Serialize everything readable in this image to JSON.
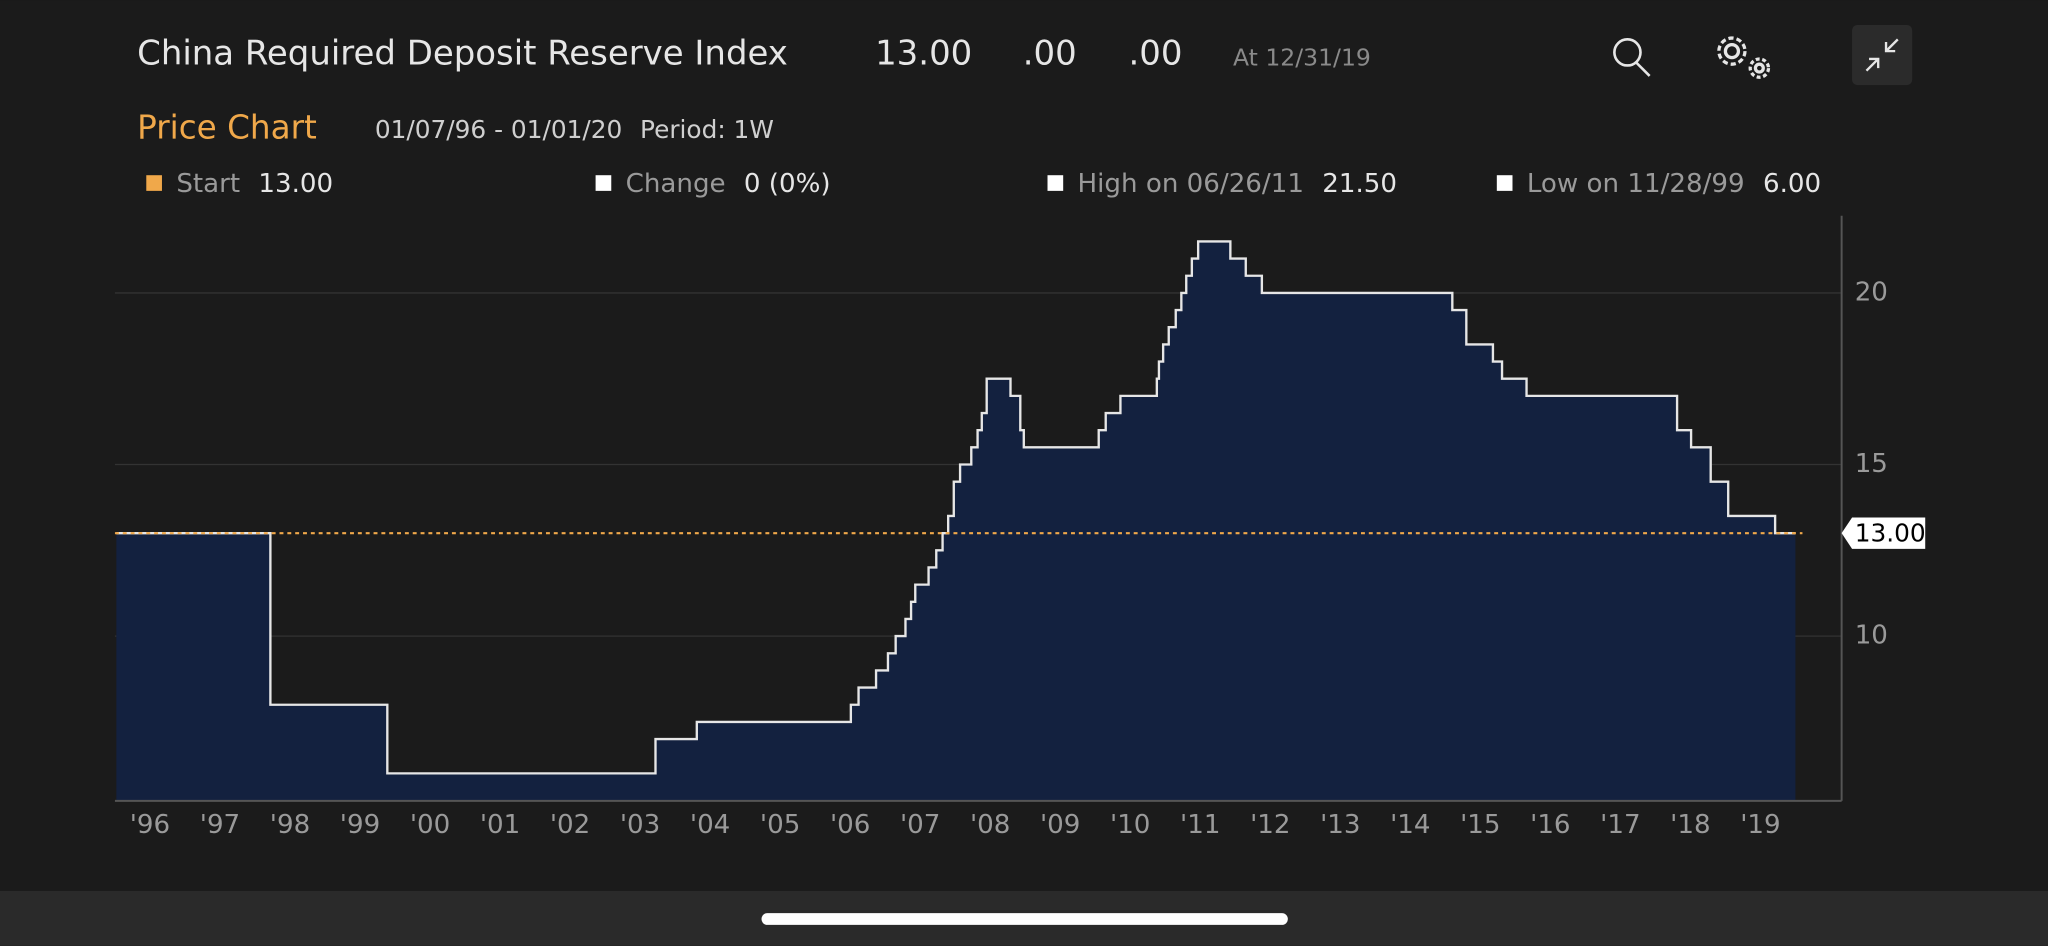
{
  "header": {
    "title": "China Required Deposit Reserve Index",
    "last": "13.00",
    "change": ".00",
    "pct_change": ".00",
    "as_of": "At 12/31/19",
    "section": "Price Chart",
    "range": "01/07/96 - 01/01/20",
    "period": "Period: 1W",
    "stats": [
      {
        "label": "Start",
        "value": "13.00",
        "color": "#f0a84a"
      },
      {
        "label": "Change",
        "value": "0 (0%)",
        "color": "#ffffff"
      },
      {
        "label": "High on 06/26/11",
        "value": "21.50",
        "color": "#ffffff"
      },
      {
        "label": "Low on 11/28/99",
        "value": "6.00",
        "color": "#ffffff"
      }
    ]
  },
  "chart_data": {
    "type": "step-area",
    "color": "#e6e6e6",
    "fill": "#13213f",
    "x": [
      1996.02,
      1998.22,
      1999.89,
      2003.72,
      2004.31,
      2006.51,
      2006.62,
      2006.87,
      2007.04,
      2007.15,
      2007.29,
      2007.37,
      2007.43,
      2007.62,
      2007.73,
      2007.82,
      2007.9,
      2007.98,
      2008.07,
      2008.23,
      2008.32,
      2008.38,
      2008.45,
      2008.79,
      2008.93,
      2008.98,
      2010.05,
      2010.15,
      2010.36,
      2010.88,
      2010.91,
      2010.97,
      2011.05,
      2011.15,
      2011.23,
      2011.3,
      2011.38,
      2011.47,
      2011.93,
      2012.15,
      2012.38,
      2015.1,
      2015.3,
      2015.68,
      2015.81,
      2016.16,
      2018.31,
      2018.51,
      2018.79,
      2019.04,
      2019.71,
      2020.0
    ],
    "values": [
      13,
      8,
      6,
      7,
      7.5,
      8,
      8.5,
      9,
      9.5,
      10,
      10.5,
      11,
      11.5,
      12,
      12.5,
      13,
      13.5,
      14.5,
      15,
      15.5,
      16,
      16.5,
      17.5,
      17,
      16,
      15.5,
      16,
      16.5,
      17,
      17.5,
      18,
      18.5,
      19,
      19.5,
      20,
      20.5,
      21,
      21.5,
      21,
      20.5,
      20,
      19.5,
      18.5,
      18,
      17.5,
      17,
      16,
      15.5,
      14.5,
      13.5,
      13,
      13
    ],
    "xlim": [
      1996,
      2020.66
    ],
    "ylim": [
      5.2,
      22.25
    ],
    "xticks": [
      {
        "value": 1996,
        "label": "'96"
      },
      {
        "value": 1997,
        "label": "'97"
      },
      {
        "value": 1998,
        "label": "'98"
      },
      {
        "value": 1999,
        "label": "'99"
      },
      {
        "value": 2000,
        "label": "'00"
      },
      {
        "value": 2001,
        "label": "'01"
      },
      {
        "value": 2002,
        "label": "'02"
      },
      {
        "value": 2003,
        "label": "'03"
      },
      {
        "value": 2004,
        "label": "'04"
      },
      {
        "value": 2005,
        "label": "'05"
      },
      {
        "value": 2006,
        "label": "'06"
      },
      {
        "value": 2007,
        "label": "'07"
      },
      {
        "value": 2008,
        "label": "'08"
      },
      {
        "value": 2009,
        "label": "'09"
      },
      {
        "value": 2010,
        "label": "'10"
      },
      {
        "value": 2011,
        "label": "'11"
      },
      {
        "value": 2012,
        "label": "'12"
      },
      {
        "value": 2013,
        "label": "'13"
      },
      {
        "value": 2014,
        "label": "'14"
      },
      {
        "value": 2015,
        "label": "'15"
      },
      {
        "value": 2016,
        "label": "'16"
      },
      {
        "value": 2017,
        "label": "'17"
      },
      {
        "value": 2018,
        "label": "'18"
      },
      {
        "value": 2019,
        "label": "'19"
      }
    ],
    "yticks": [
      10,
      15,
      20
    ],
    "grid": true,
    "reference_line": {
      "value": 13,
      "label": "13.00",
      "color": "#f0a84a"
    }
  }
}
